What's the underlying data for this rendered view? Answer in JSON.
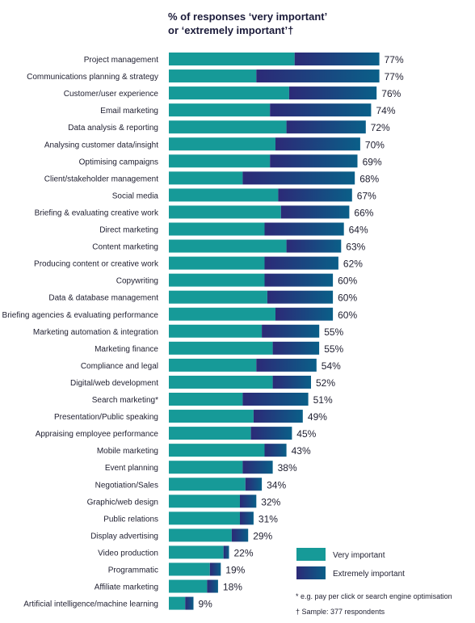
{
  "chart_data": {
    "type": "bar",
    "orientation": "horizontal",
    "title_lines": [
      "% of responses ‘very important’",
      "or ‘extremely important’†"
    ],
    "xlim": [
      0,
      100
    ],
    "categories": [
      "Project management",
      "Communications planning & strategy",
      "Customer/user experience",
      "Email marketing",
      "Data analysis & reporting",
      "Analysing customer data/insight",
      "Optimising campaigns",
      "Client/stakeholder management",
      "Social media",
      "Briefing & evaluating creative work",
      "Direct marketing",
      "Content marketing",
      "Producing content or creative work",
      "Copywriting",
      "Data & database management",
      "Briefing agencies & evaluating performance",
      "Marketing automation & integration",
      "Marketing finance",
      "Compliance and legal",
      "Digital/web development",
      "Search marketing*",
      "Presentation/Public speaking",
      "Appraising employee performance",
      "Mobile marketing",
      "Event planning",
      "Negotiation/Sales",
      "Graphic/web design",
      "Public relations",
      "Display advertising",
      "Video production",
      "Programmatic",
      "Affiliate marketing",
      "Artificial intelligence/machine learning"
    ],
    "series": [
      {
        "name": "Very important",
        "color": "#169a98",
        "values": [
          46,
          32,
          44,
          37,
          43,
          39,
          37,
          27,
          40,
          41,
          35,
          43,
          35,
          35,
          36,
          39,
          34,
          38,
          32,
          38,
          27,
          31,
          30,
          35,
          27,
          28,
          26,
          26,
          23,
          20,
          15,
          14,
          6
        ]
      },
      {
        "name": "Extremely important",
        "color": "#2a2a75",
        "values": [
          31,
          45,
          32,
          37,
          29,
          31,
          32,
          41,
          27,
          25,
          29,
          20,
          27,
          25,
          24,
          21,
          21,
          17,
          22,
          14,
          24,
          18,
          15,
          8,
          11,
          6,
          6,
          5,
          6,
          2,
          4,
          4,
          3
        ]
      }
    ],
    "totals": [
      "77%",
      "77%",
      "76%",
      "74%",
      "72%",
      "70%",
      "69%",
      "68%",
      "67%",
      "66%",
      "64%",
      "63%",
      "62%",
      "60%",
      "60%",
      "60%",
      "55%",
      "55%",
      "54%",
      "52%",
      "51%",
      "49%",
      "45%",
      "43%",
      "38%",
      "34%",
      "32%",
      "31%",
      "29%",
      "22%",
      "19%",
      "18%",
      "9%"
    ],
    "legend": {
      "position": "bottom-right"
    },
    "grid": false
  },
  "footnotes": [
    "* e.g. pay per click or search engine optimisation",
    "† Sample: 377 respondents"
  ]
}
